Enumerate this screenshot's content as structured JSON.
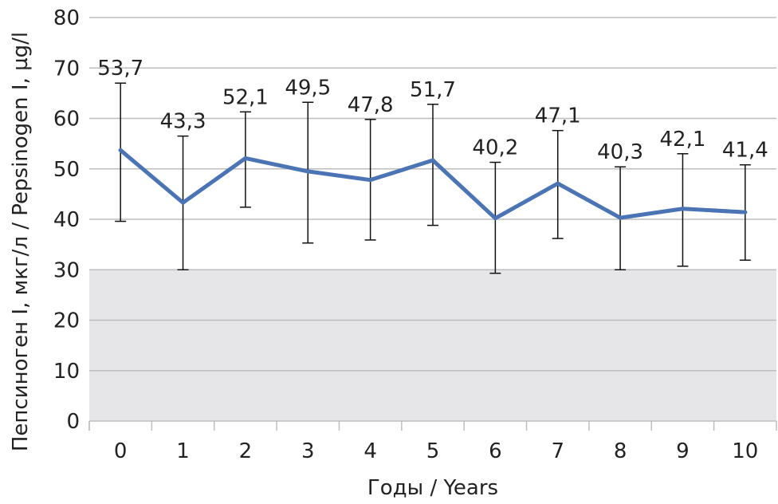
{
  "chart_data": {
    "type": "line",
    "xlabel": "Годы / Years",
    "ylabel": "Пепсиноген I, мкг/л / Pepsinogen I, µg/l",
    "categories": [
      "0",
      "1",
      "2",
      "3",
      "4",
      "5",
      "6",
      "7",
      "8",
      "9",
      "10"
    ],
    "ylim": [
      0,
      80
    ],
    "yticks": [
      "0",
      "10",
      "20",
      "30",
      "40",
      "50",
      "60",
      "70",
      "80"
    ],
    "series": [
      {
        "values": [
          53.7,
          43.3,
          52.1,
          49.5,
          47.8,
          51.7,
          40.2,
          47.1,
          40.3,
          42.1,
          41.4
        ],
        "labels": [
          "53,7",
          "43,3",
          "52,1",
          "49,5",
          "47,8",
          "51,7",
          "40,2",
          "47,1",
          "40,3",
          "42,1",
          "41,4"
        ],
        "error_upper": [
          67.0,
          56.5,
          61.3,
          63.2,
          59.8,
          62.8,
          51.3,
          57.6,
          50.4,
          53.0,
          50.8
        ],
        "error_lower": [
          39.6,
          30.0,
          42.4,
          35.3,
          35.9,
          38.8,
          29.3,
          36.2,
          30.0,
          30.7,
          31.9
        ]
      }
    ],
    "shaded_band": [
      0,
      30
    ],
    "colors": {
      "line": "#4a74b4",
      "band": "#e6e6e8",
      "grid": "#bdbdbd",
      "error": "#111111"
    },
    "grid": true,
    "legend": "none"
  }
}
